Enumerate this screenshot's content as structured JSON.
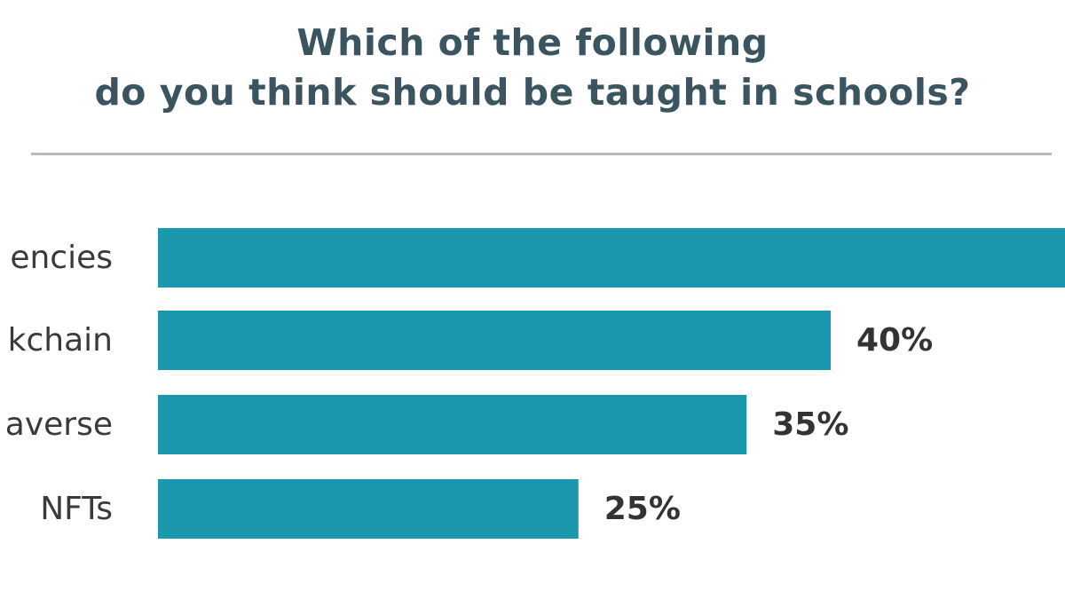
{
  "chart_data": {
    "type": "bar",
    "orientation": "horizontal",
    "title_lines": [
      "Which of the following",
      "do you think should be taught in schools?"
    ],
    "categories": [
      "encies",
      "kchain",
      "averse",
      "NFTs"
    ],
    "values": [
      null,
      40,
      35,
      25
    ],
    "value_labels": [
      "",
      "40%",
      "35%",
      "25%"
    ],
    "bar_color": "#1a97ac",
    "xlim": [
      0,
      40
    ],
    "grid": false,
    "legend": "none"
  }
}
